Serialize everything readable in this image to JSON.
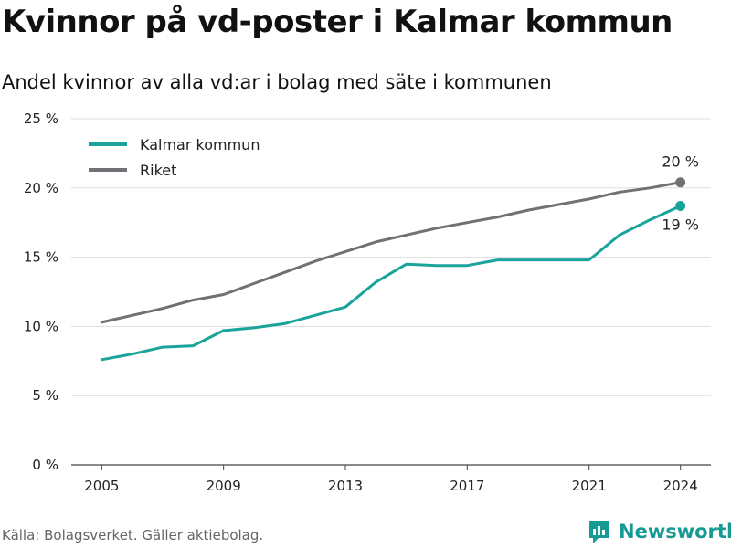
{
  "header": {
    "title": "Kvinnor på vd-poster i Kalmar kommun",
    "subtitle": "Andel kvinnor av alla vd:ar i bolag med säte i kommunen"
  },
  "footer": {
    "source": "Källa: Bolagsverket. Gäller aktiebolag.",
    "brand": "Newsworthy",
    "brand_icon": "newsworthy-logo-icon"
  },
  "chart_data": {
    "type": "line",
    "x": [
      2005,
      2006,
      2007,
      2008,
      2009,
      2010,
      2011,
      2012,
      2013,
      2014,
      2015,
      2016,
      2017,
      2018,
      2019,
      2020,
      2021,
      2022,
      2023,
      2024
    ],
    "series": [
      {
        "name": "Kalmar kommun",
        "color": "#1aa39b",
        "values": [
          7.6,
          8.0,
          8.5,
          8.6,
          9.7,
          9.9,
          10.2,
          10.8,
          11.4,
          13.2,
          14.5,
          14.4,
          14.4,
          14.8,
          14.8,
          14.8,
          14.8,
          16.6,
          17.7,
          18.7
        ],
        "end_label": "19 %"
      },
      {
        "name": "Riket",
        "color": "#707075",
        "values": [
          10.3,
          10.8,
          11.3,
          11.9,
          12.3,
          13.1,
          13.9,
          14.7,
          15.4,
          16.1,
          16.6,
          17.1,
          17.5,
          17.9,
          18.4,
          18.8,
          19.2,
          19.7,
          20.0,
          20.4
        ],
        "end_label": "20 %"
      }
    ],
    "x_ticks": [
      2005,
      2009,
      2013,
      2017,
      2021,
      2024
    ],
    "y_ticks": [
      0,
      5,
      10,
      15,
      20,
      25
    ],
    "y_tick_labels": [
      "0 %",
      "5 %",
      "10 %",
      "15 %",
      "20 %",
      "25 %"
    ],
    "ylim": [
      0,
      25
    ],
    "xlim": [
      2004,
      2025
    ],
    "grid": "horizontal",
    "legend_position": "top-left"
  }
}
